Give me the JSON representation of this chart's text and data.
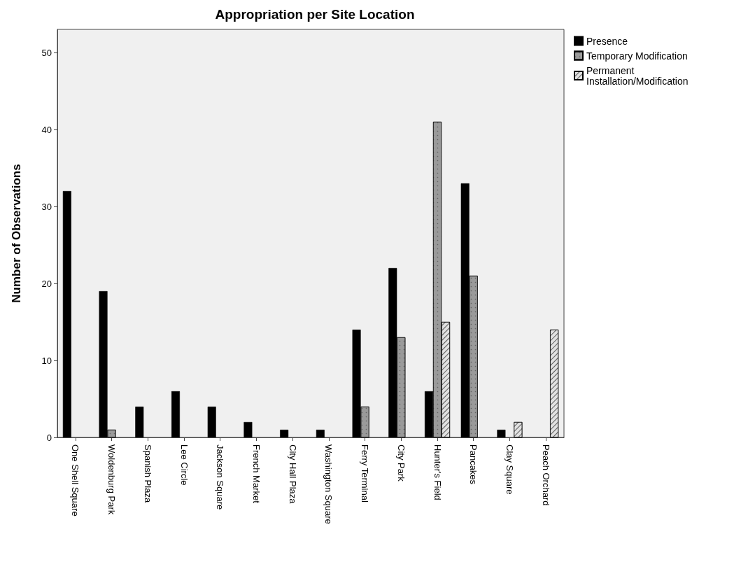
{
  "chart_data": {
    "type": "bar",
    "title": "Appropriation per Site Location",
    "ylabel": "Number of Observations",
    "categories": [
      "One Shell Square",
      "Woldenburg Park",
      "Spanish Plaza",
      "Lee Circle",
      "Jackson Square",
      "French Market",
      "City Hall Plaza",
      "Washington Square",
      "Ferry Terminal",
      "City Park",
      "Hunter's Field",
      "Pancakes",
      "Clay Square",
      "Peach Orchard"
    ],
    "series": [
      {
        "name": "Presence",
        "color": "#000000",
        "values": [
          32,
          19,
          4,
          6,
          4,
          2,
          1,
          1,
          14,
          22,
          6,
          33,
          1,
          0
        ]
      },
      {
        "name": "Temporary Modification",
        "color": "#9a9a9a",
        "values": [
          0,
          1,
          0,
          0,
          0,
          0,
          0,
          0,
          4,
          13,
          41,
          21,
          0,
          0
        ]
      },
      {
        "name": "Permanent Installation/Modification",
        "color": "#e2e2e2",
        "values": [
          0,
          0,
          0,
          0,
          0,
          0,
          0,
          0,
          0,
          0,
          15,
          0,
          2,
          14
        ]
      }
    ],
    "ylim": [
      0,
      53
    ],
    "yticks": [
      0,
      10,
      20,
      30,
      40,
      50
    ],
    "grid": false,
    "legend": "top right"
  }
}
